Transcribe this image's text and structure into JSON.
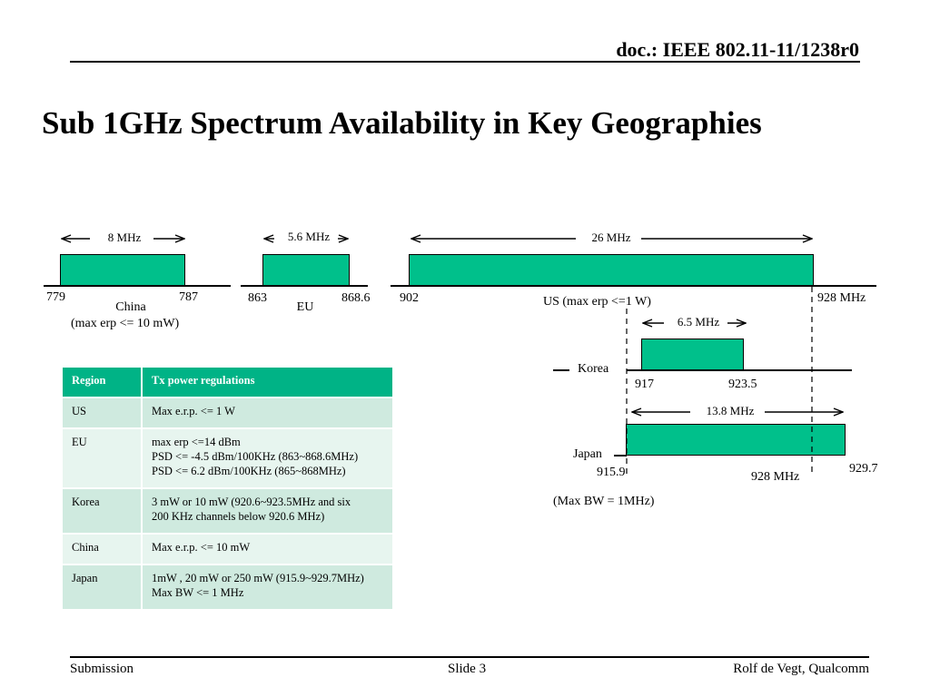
{
  "header": {
    "doc_id": "doc.: IEEE 802.11-11/1238r0"
  },
  "title": "Sub 1GHz Spectrum Availability in Key Geographies",
  "spectrum": {
    "china": {
      "bandwidth": "8 MHz",
      "start": "779",
      "end": "787",
      "name": "China",
      "note": "(max erp <= 10 mW)"
    },
    "eu": {
      "bandwidth": "5.6 MHz",
      "start": "863",
      "end": "868.6",
      "name": "EU"
    },
    "us": {
      "bandwidth": "26 MHz",
      "start": "902",
      "end": "928 MHz",
      "name": "US (max erp <=1 W)"
    },
    "korea": {
      "bandwidth": "6.5 MHz",
      "name": "Korea",
      "start": "917",
      "end": "923.5"
    },
    "japan": {
      "bandwidth": "13.8 MHz",
      "name": "Japan",
      "start": "915.9",
      "mid": "928 MHz",
      "end": "929.7",
      "note": "(Max BW = 1MHz)"
    }
  },
  "table": {
    "headers": [
      "Region",
      "Tx power regulations"
    ],
    "rows": [
      {
        "region": "US",
        "lines": [
          "Max e.r.p. <= 1 W"
        ]
      },
      {
        "region": "EU",
        "lines": [
          "max erp <=14 dBm",
          "PSD <= -4.5 dBm/100KHz (863~868.6MHz)",
          "PSD <= 6.2 dBm/100KHz (865~868MHz)"
        ]
      },
      {
        "region": "Korea",
        "lines": [
          "3 mW or 10 mW (920.6~923.5MHz and six",
          "200 KHz channels below 920.6 MHz)"
        ]
      },
      {
        "region": "China",
        "lines": [
          "Max e.r.p. <= 10 mW"
        ]
      },
      {
        "region": "Japan",
        "lines": [
          "1mW , 20 mW or 250 mW (915.9~929.7MHz)",
          "Max BW <= 1 MHz"
        ]
      }
    ]
  },
  "footer": {
    "left": "Submission",
    "center": "Slide 3",
    "right": "Rolf de Vegt, Qualcomm"
  },
  "colors": {
    "band_fill": "#00c08b",
    "table_header": "#00b386",
    "row_odd": "#cfeadf",
    "row_even": "#e7f5ef"
  }
}
